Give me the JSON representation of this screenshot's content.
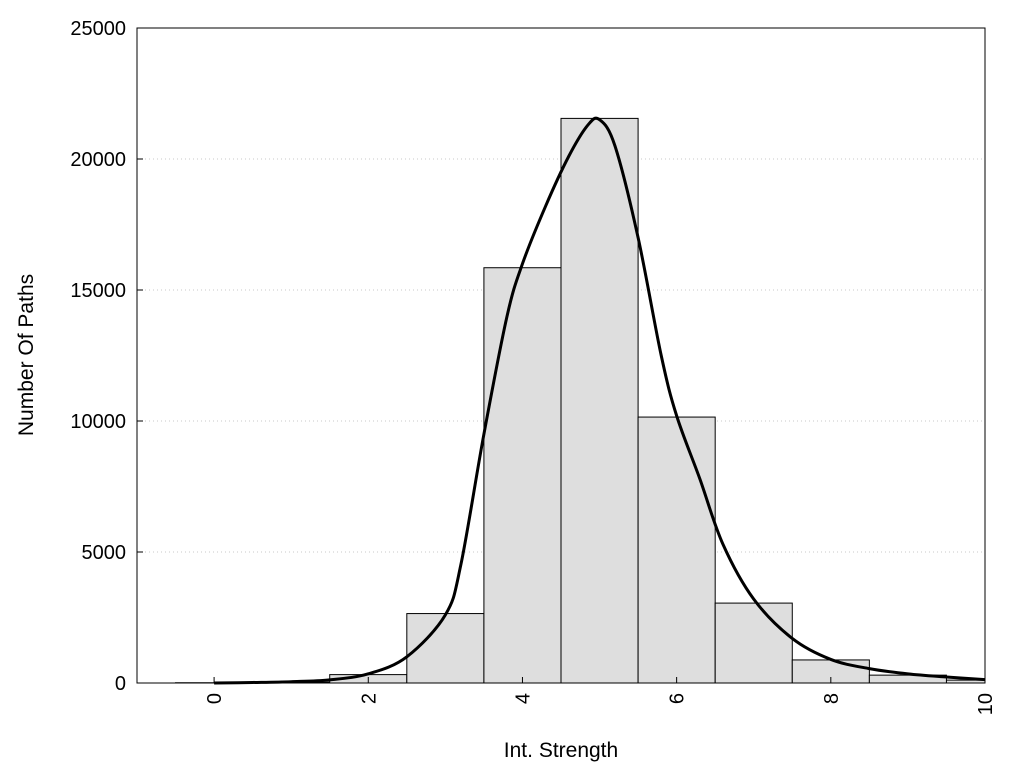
{
  "chart_data": {
    "type": "bar",
    "title": "",
    "xlabel": "Int. Strength",
    "ylabel": "Number Of Paths",
    "xlim": [
      -1,
      10
    ],
    "ylim": [
      0,
      25000
    ],
    "x_ticks": [
      0,
      2,
      4,
      6,
      8,
      10
    ],
    "y_ticks": [
      0,
      5000,
      10000,
      15000,
      20000,
      25000
    ],
    "grid": "horizontal dotted",
    "bars": {
      "x": [
        0,
        1,
        2,
        3,
        4,
        5,
        6,
        7,
        8,
        9,
        10
      ],
      "values": [
        10,
        30,
        320,
        2650,
        15850,
        21550,
        10150,
        3050,
        880,
        300,
        110
      ],
      "width": 1,
      "color": "#dedede"
    },
    "curve": {
      "x": [
        0,
        0.5,
        1,
        1.5,
        2,
        2.5,
        3,
        3.2,
        3.5,
        3.8,
        4,
        4.3,
        4.6,
        4.85,
        5,
        5.2,
        5.5,
        5.8,
        6,
        6.3,
        6.6,
        7,
        7.5,
        8,
        8.5,
        9,
        9.5,
        10
      ],
      "values": [
        0,
        20,
        50,
        120,
        350,
        1000,
        2600,
        4500,
        9500,
        14000,
        16000,
        18200,
        20100,
        21300,
        21500,
        20500,
        17000,
        12500,
        10200,
        7800,
        5300,
        3200,
        1700,
        900,
        550,
        350,
        230,
        130
      ],
      "color": "#000000"
    }
  }
}
